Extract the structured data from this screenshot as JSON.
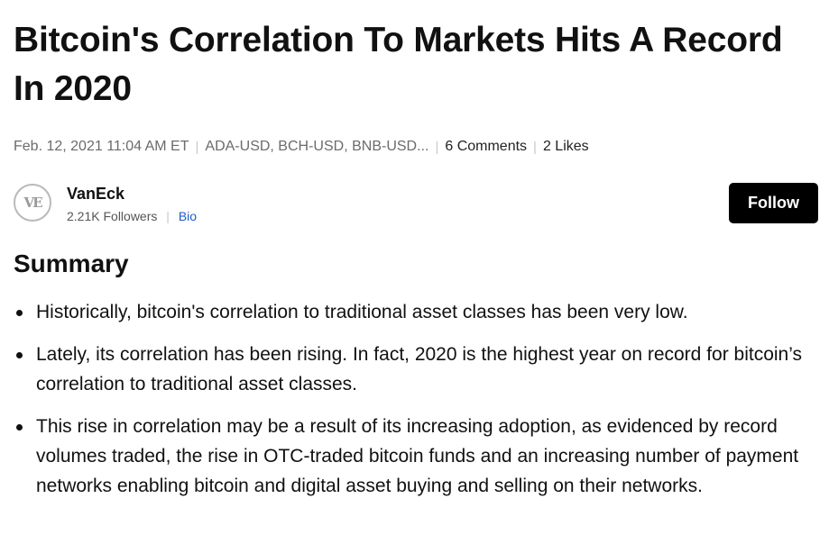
{
  "article": {
    "title": "Bitcoin's Correlation To Markets Hits A Record In 2020",
    "meta": {
      "date": "Feb. 12, 2021 11:04 AM ET",
      "tickers": "ADA-USD, BCH-USD, BNB-USD...",
      "comments": "6 Comments",
      "likes": "2 Likes"
    },
    "author": {
      "avatar_text": "VE",
      "name": "VanEck",
      "followers": "2.21K Followers",
      "bio_label": "Bio",
      "follow_label": "Follow"
    },
    "summary": {
      "heading": "Summary",
      "bullets": [
        "Historically, bitcoin's correlation to traditional asset classes has been very low.",
        "Lately, its correlation has been rising. In fact, 2020 is the highest year on record for bitcoin’s correlation to traditional asset classes.",
        "This rise in correlation may be a result of its increasing adoption, as evidenced by record volumes traded, the rise in OTC-traded bitcoin funds and an increasing number of payment networks enabling bitcoin and digital asset buying and selling on their networks."
      ]
    }
  },
  "colors": {
    "text": "#111111",
    "muted": "#6b6b6b",
    "link": "#1e5bc6",
    "button_bg": "#000000",
    "button_text": "#ffffff"
  }
}
